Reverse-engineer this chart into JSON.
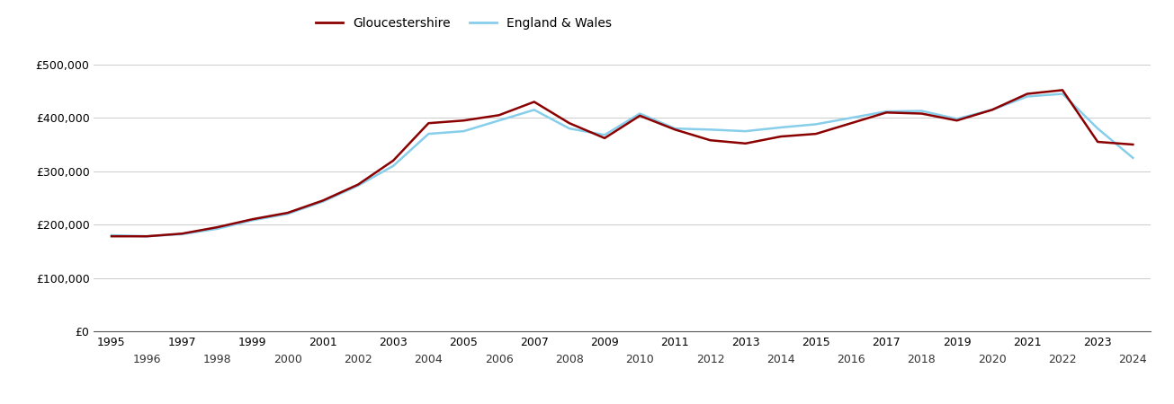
{
  "gloucestershire": {
    "years": [
      1995,
      1996,
      1997,
      1998,
      1999,
      2000,
      2001,
      2002,
      2003,
      2004,
      2005,
      2006,
      2007,
      2008,
      2009,
      2010,
      2011,
      2012,
      2013,
      2014,
      2015,
      2016,
      2017,
      2018,
      2019,
      2020,
      2021,
      2022,
      2023,
      2024
    ],
    "values": [
      178000,
      178000,
      183000,
      195000,
      210000,
      222000,
      245000,
      275000,
      320000,
      390000,
      395000,
      405000,
      430000,
      390000,
      362000,
      404000,
      378000,
      358000,
      352000,
      365000,
      370000,
      390000,
      410000,
      408000,
      395000,
      415000,
      445000,
      452000,
      355000,
      350000
    ]
  },
  "england_wales": {
    "years": [
      1995,
      1996,
      1997,
      1998,
      1999,
      2000,
      2001,
      2002,
      2003,
      2004,
      2005,
      2006,
      2007,
      2008,
      2009,
      2010,
      2011,
      2012,
      2013,
      2014,
      2015,
      2016,
      2017,
      2018,
      2019,
      2020,
      2021,
      2022,
      2023,
      2024
    ],
    "values": [
      180000,
      178000,
      182000,
      192000,
      208000,
      220000,
      243000,
      273000,
      310000,
      370000,
      375000,
      395000,
      415000,
      380000,
      368000,
      408000,
      380000,
      378000,
      375000,
      382000,
      388000,
      400000,
      412000,
      413000,
      398000,
      415000,
      440000,
      445000,
      380000,
      325000
    ]
  },
  "gloucestershire_color": "#8B0000",
  "england_wales_color": "#87CEEB",
  "background_color": "#ffffff",
  "grid_color": "#cccccc",
  "yticks": [
    0,
    100000,
    200000,
    300000,
    400000,
    500000
  ],
  "ylim": [
    0,
    530000
  ],
  "xlim": [
    1994.5,
    2024.5
  ],
  "xticks_odd": [
    1995,
    1997,
    1999,
    2001,
    2003,
    2005,
    2007,
    2009,
    2011,
    2013,
    2015,
    2017,
    2019,
    2021,
    2023
  ],
  "xticks_even": [
    1996,
    1998,
    2000,
    2002,
    2004,
    2006,
    2008,
    2010,
    2012,
    2014,
    2016,
    2018,
    2020,
    2022,
    2024
  ],
  "legend_gloucestershire": "Gloucestershire",
  "legend_england_wales": "England & Wales",
  "line_width": 1.8,
  "tick_fontsize": 9
}
